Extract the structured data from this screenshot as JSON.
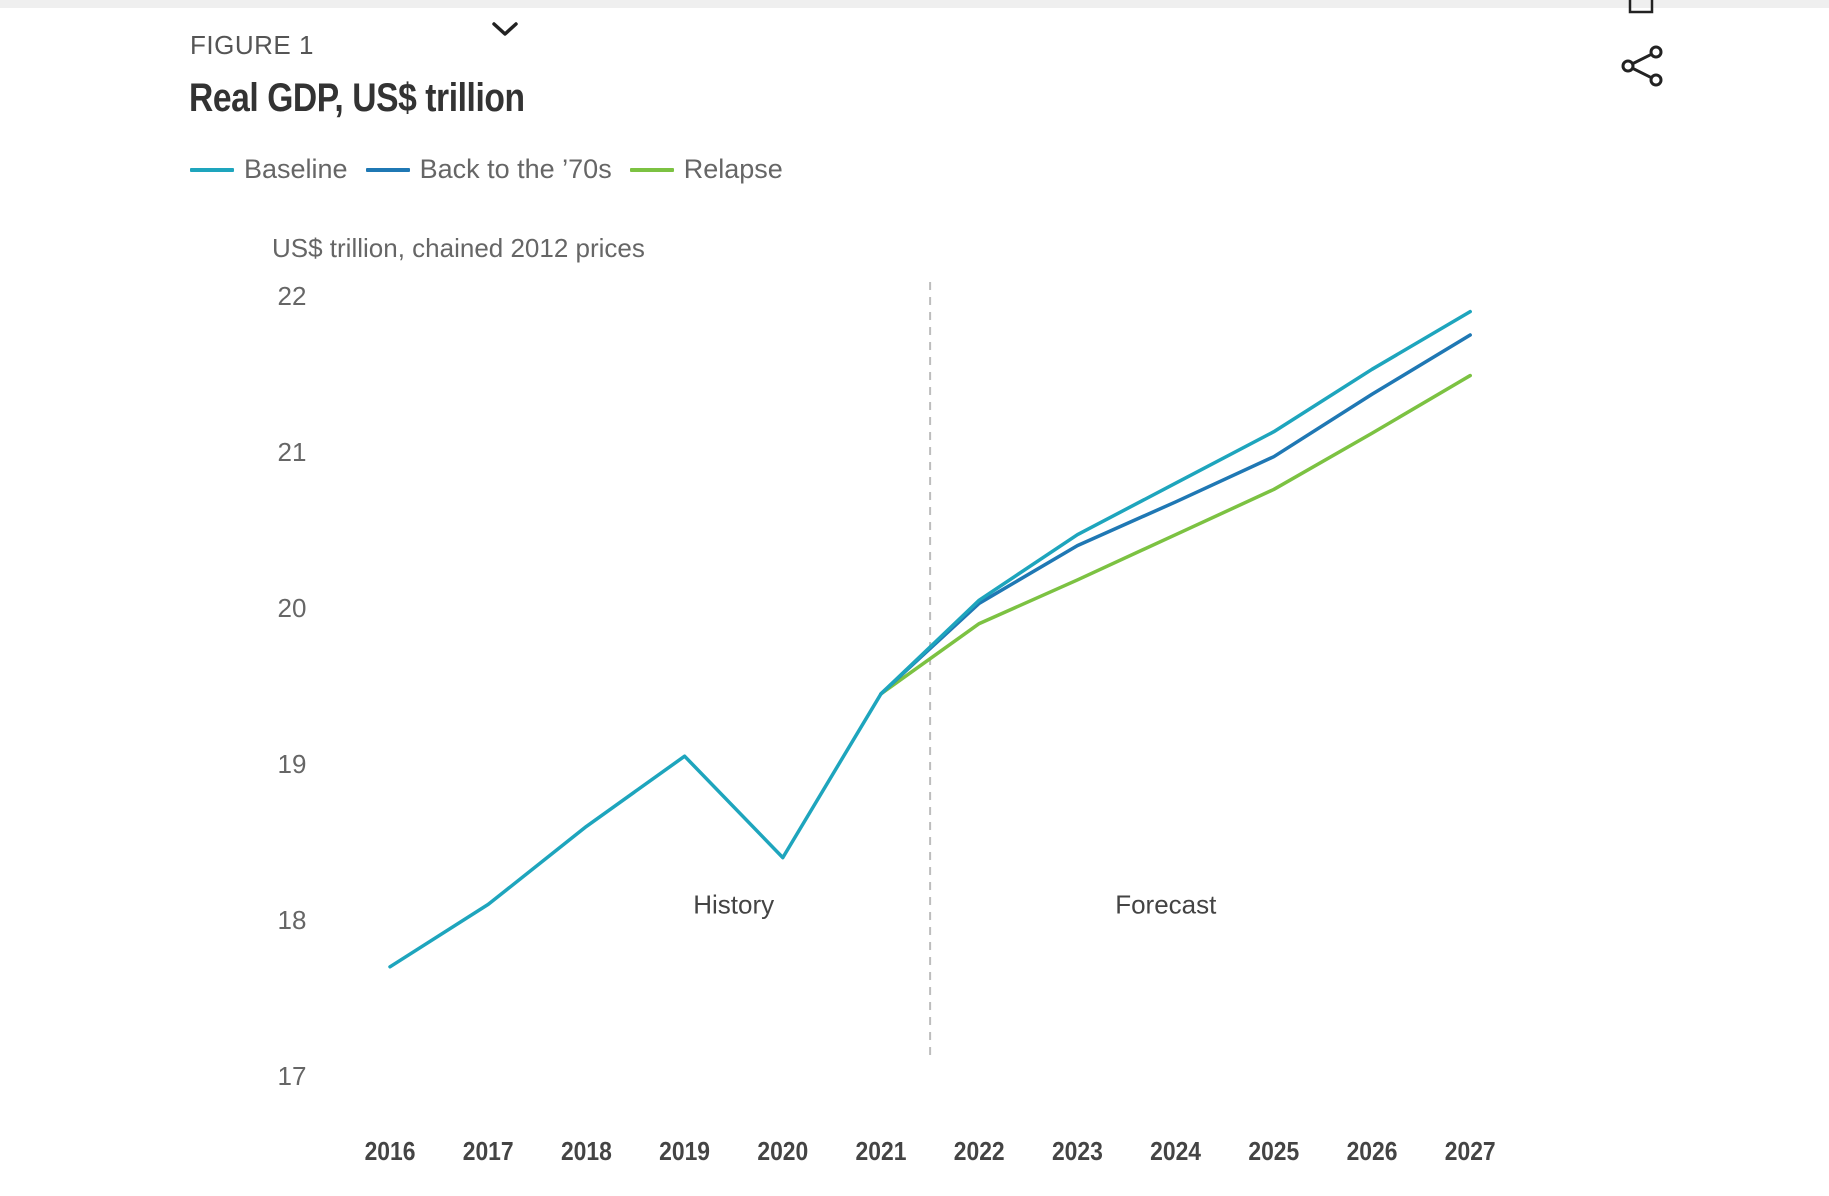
{
  "header": {
    "figure_label": "FIGURE 1",
    "title": "Real GDP, US$ trillion",
    "share_icon": "share-icon",
    "dropdown_icon": "chevron-down-icon"
  },
  "chart_data": {
    "type": "line",
    "title": "Real GDP, US$ trillion",
    "ylabel": "US$ trillion, chained 2012 prices",
    "xlabel": "",
    "ylim": [
      17,
      22
    ],
    "yticks": [
      "17",
      "18",
      "19",
      "20",
      "21",
      "22"
    ],
    "x": [
      "2016",
      "2017",
      "2018",
      "2019",
      "2020",
      "2021",
      "2022",
      "2023",
      "2024",
      "2025",
      "2026",
      "2027"
    ],
    "grid": false,
    "legend_position": "top-left",
    "divider_between": [
      "2021",
      "2022"
    ],
    "annotations": [
      {
        "text": "History",
        "x": "2019.5",
        "y": 18.1
      },
      {
        "text": "Forecast",
        "x": "2023.9",
        "y": 18.1
      }
    ],
    "series": [
      {
        "name": "Baseline",
        "color": "#1ea5bd",
        "values": [
          17.7,
          18.1,
          18.6,
          19.05,
          18.4,
          19.45,
          20.05,
          20.47,
          20.8,
          21.13,
          21.53,
          21.9
        ]
      },
      {
        "name": "Back to the ’70s",
        "color": "#1f78b4",
        "values": [
          null,
          null,
          null,
          null,
          null,
          19.45,
          20.03,
          20.4,
          20.68,
          20.97,
          21.37,
          21.75
        ]
      },
      {
        "name": "Relapse",
        "color": "#7cc242",
        "values": [
          null,
          null,
          null,
          null,
          null,
          19.45,
          19.9,
          20.18,
          20.47,
          20.76,
          21.12,
          21.49
        ]
      }
    ]
  }
}
